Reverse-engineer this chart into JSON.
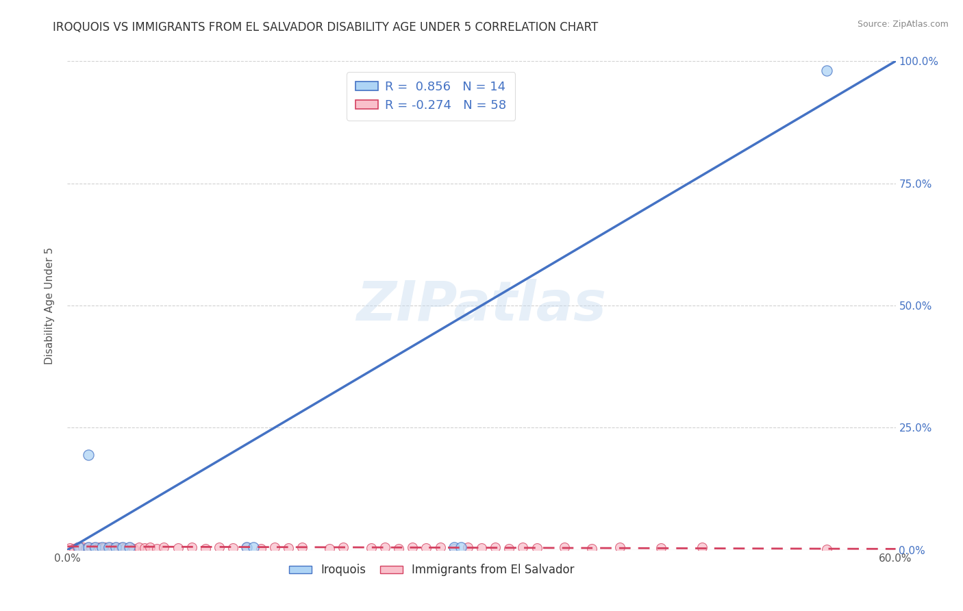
{
  "title": "IROQUOIS VS IMMIGRANTS FROM EL SALVADOR DISABILITY AGE UNDER 5 CORRELATION CHART",
  "source_text": "Source: ZipAtlas.com",
  "ylabel": "Disability Age Under 5",
  "xlim": [
    0.0,
    0.6
  ],
  "ylim": [
    0.0,
    1.0
  ],
  "xticks": [
    0.0,
    0.1,
    0.2,
    0.3,
    0.4,
    0.5,
    0.6
  ],
  "ytick_labels_right": [
    "0.0%",
    "25.0%",
    "50.0%",
    "75.0%",
    "100.0%"
  ],
  "yticks_right": [
    0.0,
    0.25,
    0.5,
    0.75,
    1.0
  ],
  "watermark": "ZIPatlas",
  "legend_blue_r": "R =  0.856",
  "legend_blue_n": "N = 14",
  "legend_pink_r": "R = -0.274",
  "legend_pink_n": "N = 58",
  "blue_color": "#AED4F5",
  "pink_color": "#F9C0CB",
  "trend_blue_color": "#4472C4",
  "trend_pink_color": "#D44060",
  "blue_scatter_x": [
    0.008,
    0.015,
    0.02,
    0.025,
    0.03,
    0.035,
    0.04,
    0.045,
    0.13,
    0.135,
    0.28,
    0.285,
    0.55,
    0.015
  ],
  "blue_scatter_y": [
    0.005,
    0.005,
    0.005,
    0.005,
    0.005,
    0.005,
    0.005,
    0.005,
    0.005,
    0.005,
    0.005,
    0.005,
    0.98,
    0.195
  ],
  "pink_scatter_x": [
    0.002,
    0.005,
    0.007,
    0.009,
    0.011,
    0.013,
    0.015,
    0.017,
    0.019,
    0.021,
    0.023,
    0.025,
    0.027,
    0.029,
    0.031,
    0.033,
    0.035,
    0.037,
    0.039,
    0.042,
    0.045,
    0.048,
    0.052,
    0.056,
    0.06,
    0.065,
    0.07,
    0.08,
    0.09,
    0.1,
    0.11,
    0.12,
    0.13,
    0.14,
    0.15,
    0.16,
    0.17,
    0.19,
    0.2,
    0.22,
    0.23,
    0.24,
    0.25,
    0.26,
    0.27,
    0.28,
    0.29,
    0.3,
    0.31,
    0.32,
    0.33,
    0.34,
    0.36,
    0.38,
    0.4,
    0.43,
    0.46,
    0.55
  ],
  "pink_scatter_y": [
    0.004,
    0.003,
    0.005,
    0.004,
    0.006,
    0.003,
    0.005,
    0.004,
    0.006,
    0.003,
    0.005,
    0.004,
    0.006,
    0.003,
    0.005,
    0.004,
    0.006,
    0.003,
    0.005,
    0.004,
    0.006,
    0.003,
    0.005,
    0.004,
    0.006,
    0.003,
    0.005,
    0.004,
    0.006,
    0.003,
    0.005,
    0.004,
    0.006,
    0.003,
    0.005,
    0.004,
    0.006,
    0.003,
    0.005,
    0.004,
    0.006,
    0.003,
    0.005,
    0.004,
    0.006,
    0.003,
    0.005,
    0.004,
    0.006,
    0.003,
    0.005,
    0.004,
    0.006,
    0.003,
    0.005,
    0.004,
    0.006,
    0.001
  ],
  "blue_trend_x": [
    0.0,
    0.6
  ],
  "blue_trend_y": [
    0.0,
    1.0
  ],
  "pink_trend_x": [
    0.0,
    0.6
  ],
  "pink_trend_y": [
    0.007,
    0.002
  ],
  "grid_color": "#CCCCCC",
  "background_color": "#FFFFFF",
  "title_color": "#333333",
  "axis_label_color": "#555555",
  "right_axis_color": "#4472C4"
}
